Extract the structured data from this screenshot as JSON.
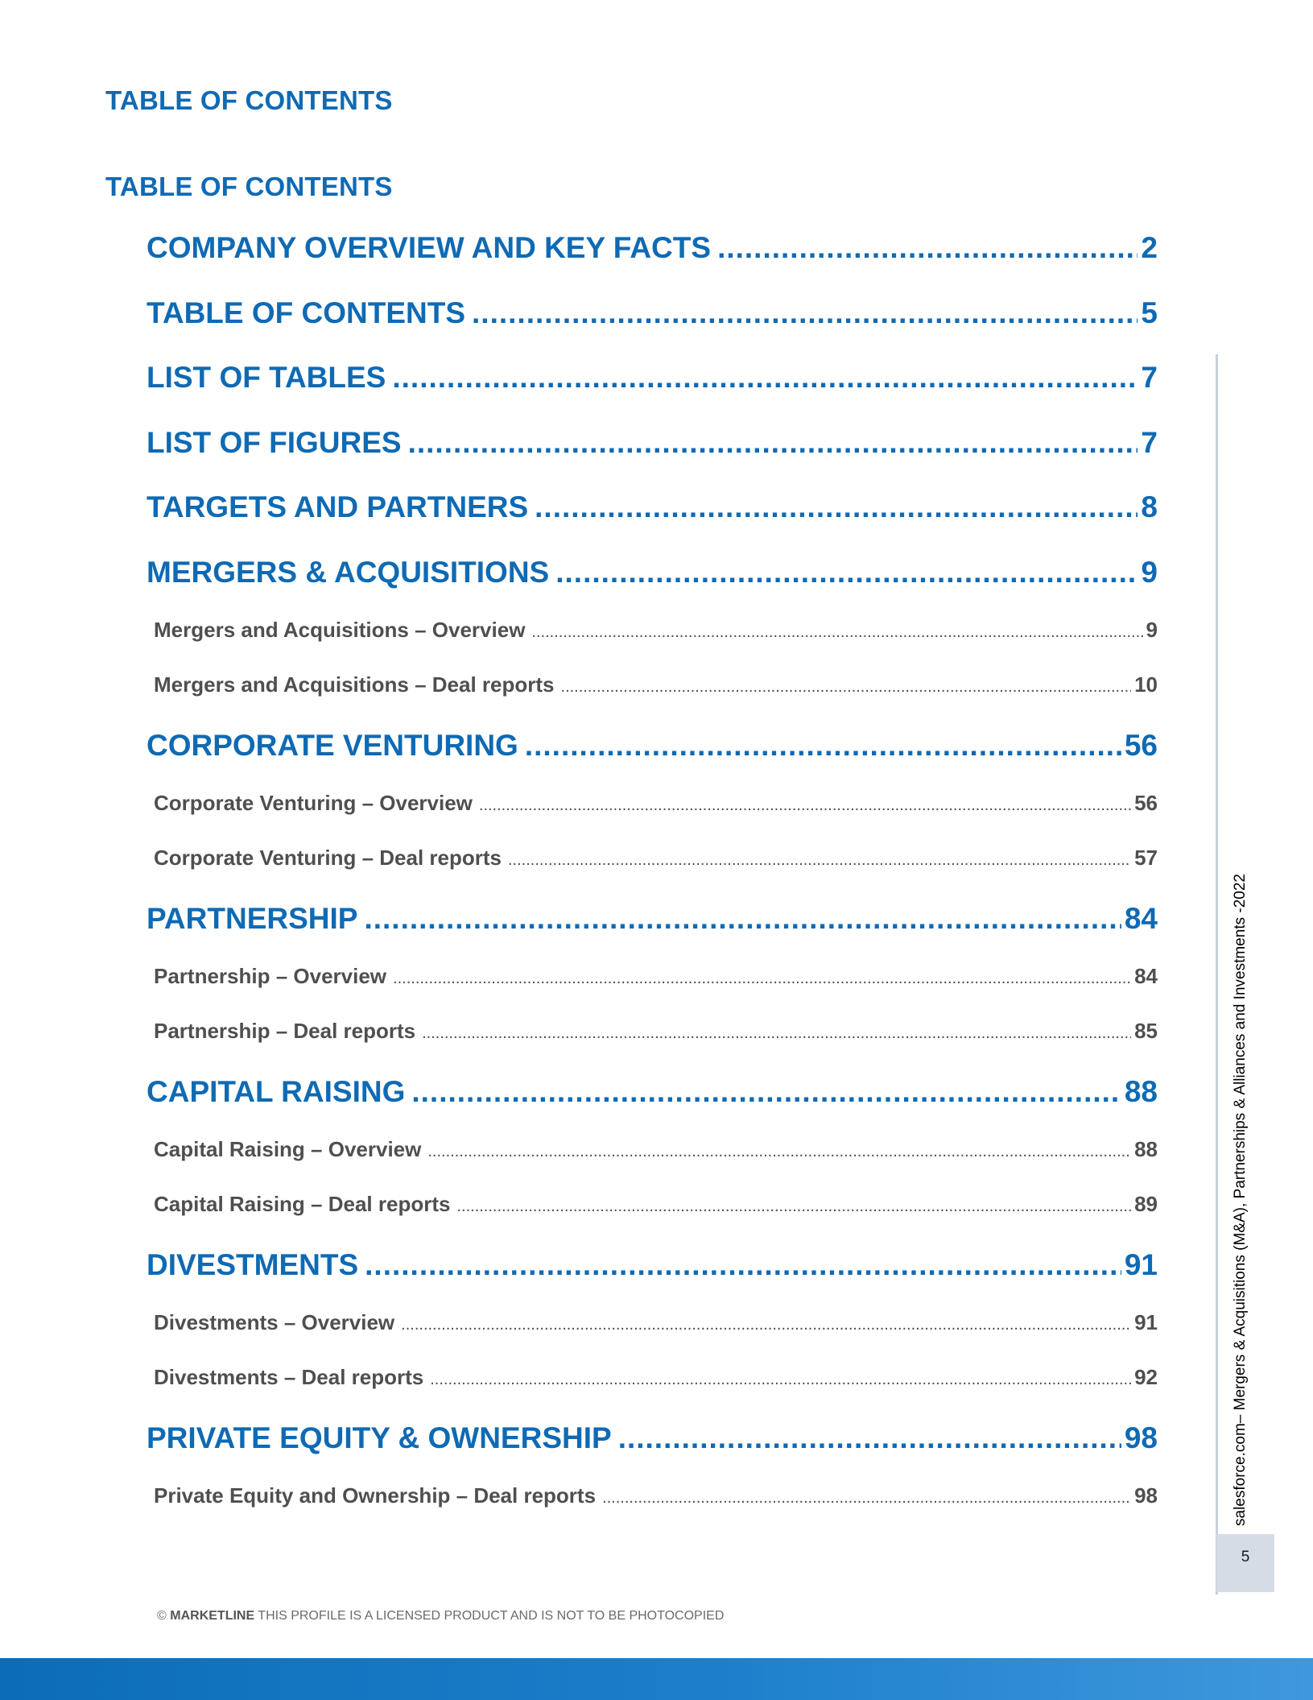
{
  "headings": {
    "first": "TABLE OF CONTENTS",
    "second": "TABLE OF CONTENTS"
  },
  "toc": [
    {
      "level": 1,
      "label": "COMPANY OVERVIEW AND KEY FACTS",
      "page": "2"
    },
    {
      "level": 1,
      "label": "TABLE OF CONTENTS",
      "page": "5"
    },
    {
      "level": 1,
      "label": "LIST OF TABLES",
      "page": "7"
    },
    {
      "level": 1,
      "label": "LIST OF FIGURES",
      "page": "7"
    },
    {
      "level": 1,
      "label": "TARGETS AND PARTNERS",
      "page": "8"
    },
    {
      "level": 1,
      "label": "MERGERS & ACQUISITIONS",
      "page": "9"
    },
    {
      "level": 2,
      "label": "Mergers and Acquisitions – Overview",
      "page": "9"
    },
    {
      "level": 2,
      "label": "Mergers and Acquisitions – Deal reports",
      "page": "10"
    },
    {
      "level": 1,
      "label": "CORPORATE VENTURING",
      "page": "56"
    },
    {
      "level": 2,
      "label": "Corporate Venturing – Overview",
      "page": "56"
    },
    {
      "level": 2,
      "label": "Corporate Venturing – Deal reports",
      "page": "57"
    },
    {
      "level": 1,
      "label": "PARTNERSHIP",
      "page": "84"
    },
    {
      "level": 2,
      "label": "Partnership – Overview",
      "page": "84"
    },
    {
      "level": 2,
      "label": "Partnership – Deal reports",
      "page": "85"
    },
    {
      "level": 1,
      "label": "CAPITAL RAISING",
      "page": "88"
    },
    {
      "level": 2,
      "label": "Capital Raising – Overview",
      "page": "88"
    },
    {
      "level": 2,
      "label": "Capital Raising – Deal reports",
      "page": "89"
    },
    {
      "level": 1,
      "label": "DIVESTMENTS",
      "page": "91"
    },
    {
      "level": 2,
      "label": "Divestments – Overview",
      "page": "91"
    },
    {
      "level": 2,
      "label": "Divestments – Deal reports",
      "page": "92"
    },
    {
      "level": 1,
      "label": "PRIVATE EQUITY & OWNERSHIP",
      "page": "98"
    },
    {
      "level": 2,
      "label": "Private Equity and Ownership – Deal reports",
      "page": "98"
    }
  ],
  "sidebar": {
    "running_title": "salesforce.com– Mergers & Acquisitions (M&A), Partnerships & Alliances and Investments -2022",
    "page_number": "5"
  },
  "footer": {
    "copyright_symbol": "©",
    "brand": "MARKETLINE",
    "notice": "THIS PROFILE IS A LICENSED PRODUCT AND IS NOT TO BE PHOTOCOPIED"
  },
  "colors": {
    "heading_blue": "#0f6ab4",
    "subentry_gray": "#4f4f4f",
    "band_blue": "#0c6cb8"
  }
}
